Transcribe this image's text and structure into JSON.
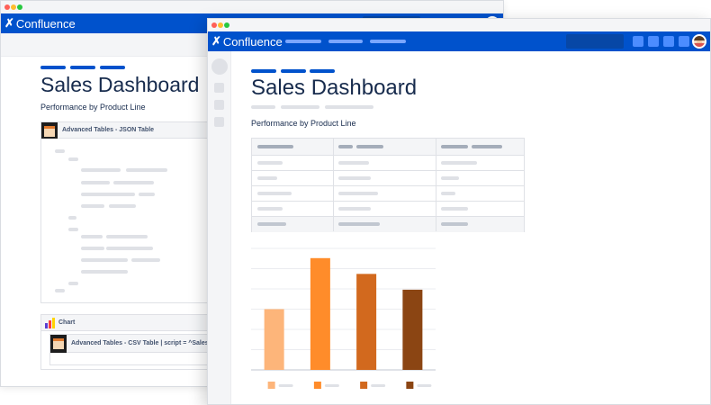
{
  "brand": {
    "name": "Confluence",
    "accent": "#0052cc"
  },
  "back_window": {
    "page_title": "Sales Dashboard",
    "subtitle": "Performance by Product Line",
    "json_macro_title": "Advanced Tables - JSON Table",
    "chart_macro_title": "Chart",
    "csv_macro_title": "Advanced Tables - CSV Table | script = ^Sales-F"
  },
  "front_window": {
    "page_title": "Sales Dashboard",
    "subtitle": "Performance by Product Line"
  },
  "chart_data": {
    "type": "bar",
    "categories": [
      "",
      "",
      "",
      ""
    ],
    "values": [
      50,
      92,
      79,
      66
    ],
    "ylim": [
      0,
      100
    ],
    "colors": [
      "#fdb57a",
      "#ff8c2a",
      "#d2691e",
      "#8b4513"
    ],
    "grid": true,
    "legend": "bottom"
  }
}
